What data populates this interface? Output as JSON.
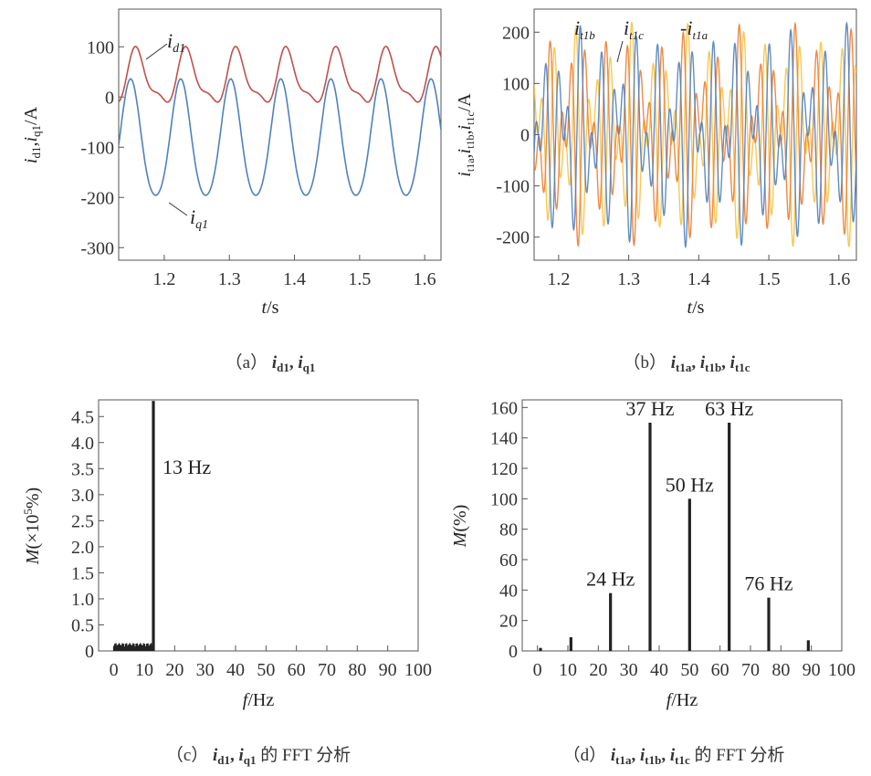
{
  "chart_data": [
    {
      "id": "a",
      "type": "line",
      "caption": {
        "prefix": "（a）",
        "text": "i_d1, i_q1"
      },
      "xlabel": "t/s",
      "ylabel": "i_d1,i_q1/A",
      "xlim": [
        1.13,
        1.625
      ],
      "ylim": [
        -325,
        175
      ],
      "xticks": [
        "1.2",
        "1.3",
        "1.4",
        "1.5",
        "1.6"
      ],
      "yticks": [
        "100",
        "0",
        "-100",
        "-200",
        "-300"
      ],
      "series": [
        {
          "name": "i_d1",
          "label": "i_d1",
          "color": "#c0504d",
          "mean": 35,
          "amp": 62,
          "period": 0.0769
        },
        {
          "name": "i_q1",
          "label": "i_q1",
          "color": "#4f81bd",
          "mean": -92,
          "amp": 122,
          "period": 0.0769
        }
      ]
    },
    {
      "id": "b",
      "type": "line",
      "caption": {
        "prefix": "（b）",
        "text": "i_t1a, i_t1b, i_t1c"
      },
      "xlabel": "t/s",
      "ylabel": "i_t1a,i_t1b,i_t1c/A",
      "xlim": [
        1.165,
        1.625
      ],
      "ylim": [
        -245,
        245
      ],
      "xticks": [
        "1.2",
        "1.3",
        "1.4",
        "1.5",
        "1.6"
      ],
      "yticks": [
        "200",
        "100",
        "0",
        "-100",
        "-200"
      ],
      "series": [
        {
          "name": "i_t1b",
          "label": "i_t1b",
          "color": "#4f81bd"
        },
        {
          "name": "i_t1c",
          "label": "i_t1c",
          "color": "#ed7d31"
        },
        {
          "name": "i_t1a",
          "label": "i_t1a",
          "color": "#f7c242"
        }
      ]
    },
    {
      "id": "c",
      "type": "bar",
      "caption": {
        "prefix": "（c）",
        "text": "i_d1, i_q1 的 FFT 分析"
      },
      "xlabel": "f/Hz",
      "ylabel": "M(×10^5%)",
      "xlim": [
        -5,
        100
      ],
      "ylim": [
        0,
        4.82
      ],
      "xticks": [
        "0",
        "10",
        "20",
        "30",
        "40",
        "50",
        "60",
        "70",
        "80",
        "90",
        "100"
      ],
      "yticks": [
        "0",
        "0.5",
        "1.0",
        "1.5",
        "2.0",
        "2.5",
        "3.0",
        "3.5",
        "4.0",
        "4.5"
      ],
      "peaks": [
        {
          "f": 13,
          "value": 4.8,
          "label": "13 Hz"
        }
      ],
      "noise_range": [
        0,
        13
      ],
      "noise_level": 0.15
    },
    {
      "id": "d",
      "type": "bar",
      "caption": {
        "prefix": "（d）",
        "text": "i_t1a, i_t1b, i_t1c 的 FFT 分析"
      },
      "xlabel": "f/Hz",
      "ylabel": "M(%)",
      "xlim": [
        -5,
        100
      ],
      "ylim": [
        0,
        165
      ],
      "xticks": [
        "0",
        "10",
        "20",
        "30",
        "40",
        "50",
        "60",
        "70",
        "80",
        "90",
        "100"
      ],
      "yticks": [
        "0",
        "20",
        "40",
        "60",
        "80",
        "100",
        "120",
        "140",
        "160"
      ],
      "peaks": [
        {
          "f": 1,
          "value": 2,
          "label": ""
        },
        {
          "f": 11,
          "value": 9,
          "label": ""
        },
        {
          "f": 24,
          "value": 38,
          "label": "24 Hz"
        },
        {
          "f": 37,
          "value": 150,
          "label": "37 Hz"
        },
        {
          "f": 50,
          "value": 100,
          "label": "50 Hz"
        },
        {
          "f": 63,
          "value": 150,
          "label": "63 Hz"
        },
        {
          "f": 76,
          "value": 35,
          "label": "76 Hz"
        },
        {
          "f": 89,
          "value": 7,
          "label": ""
        }
      ]
    }
  ]
}
